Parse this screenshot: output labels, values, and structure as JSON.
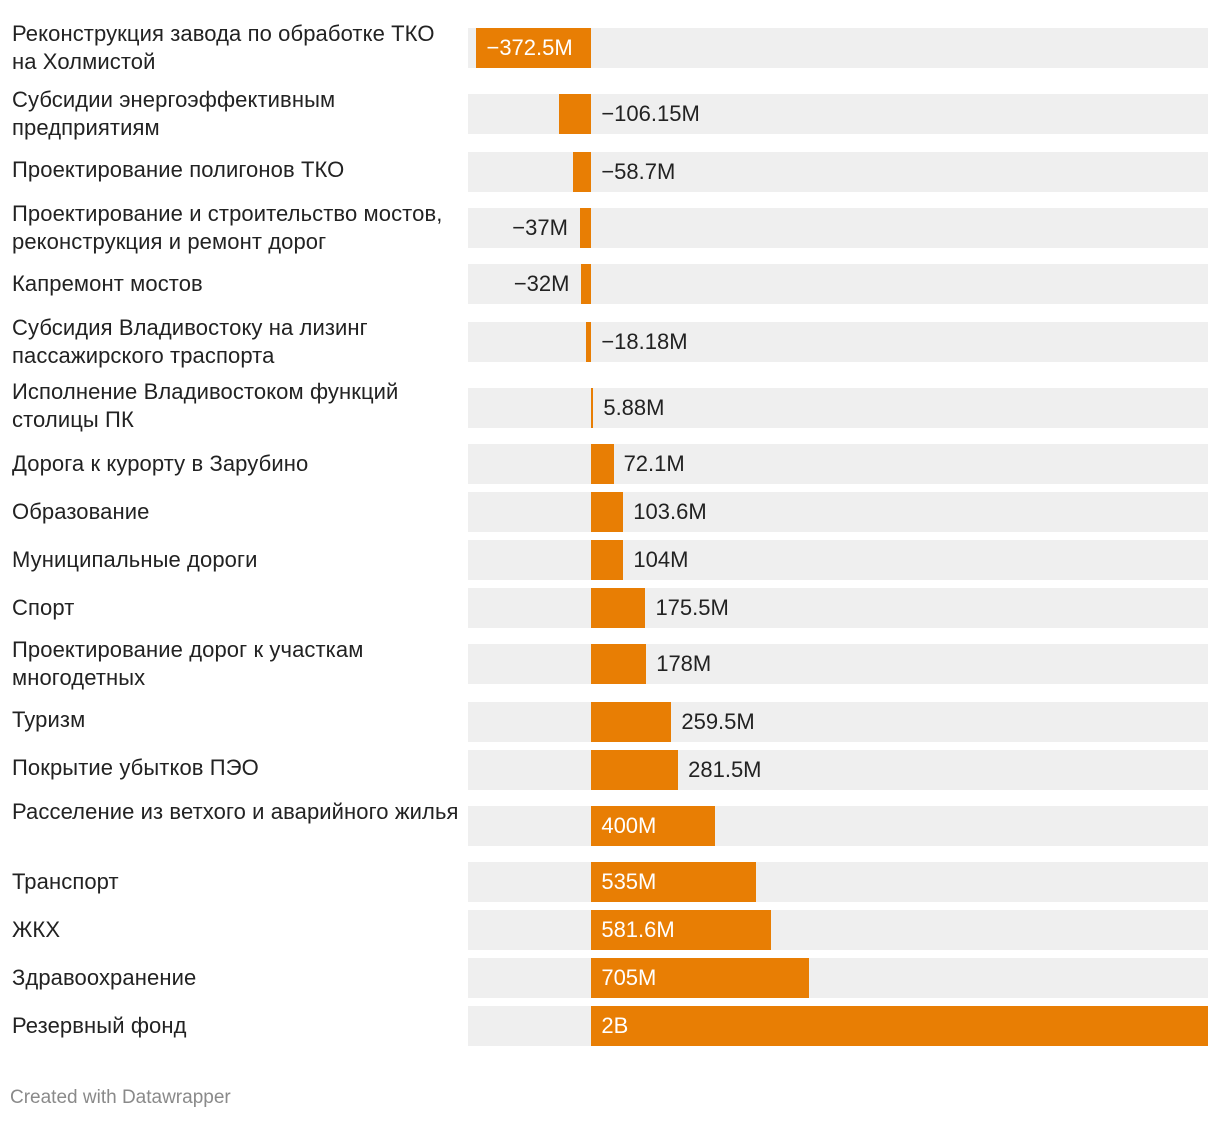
{
  "chart_data": {
    "type": "bar",
    "orientation": "horizontal",
    "bar_color": "#e87e04",
    "track_color": "#efefef",
    "label_dark_color": "#222222",
    "label_light_color": "#ffffff",
    "xlim": [
      -400,
      2000
    ],
    "unit": "M RUB",
    "categories": [
      "Реконструкция завода по обработке ТКО на Холмистой",
      "Субсидии энергоэффективным предприятиям",
      "Проектирование полигонов ТКО",
      "Проектирование и строительство мостов, реконструкция и ремонт дорог",
      "Капремонт мостов",
      "Субсидия Владивостоку на лизинг пассажирского траспорта",
      "Исполнение Владивостоком функций столицы ПК",
      "Дорога к курорту в Зарубино",
      "Образование",
      "Муниципальные дороги",
      "Спорт",
      "Проектирование дорог к участкам многодетных",
      "Туризм",
      "Покрытие убытков ПЭО",
      "Расселение из ветхого и аварийного жилья",
      "Транспорт",
      "ЖКХ",
      "Здравоохранение",
      "Резервный фонд"
    ],
    "values": [
      -372.5,
      -106.15,
      -58.7,
      -37,
      -32,
      -18.18,
      5.88,
      72.1,
      103.6,
      104,
      175.5,
      178,
      259.5,
      281.5,
      400,
      535,
      581.6,
      705,
      2000
    ],
    "value_labels": [
      "−372.5M",
      "−106.15M",
      "−58.7M",
      "−37M",
      "−32M",
      "−18.18M",
      "5.88M",
      "72.1M",
      "103.6M",
      "104M",
      "175.5M",
      "178M",
      "259.5M",
      "281.5M",
      "400M",
      "535M",
      "581.6M",
      "705M",
      "2B"
    ]
  },
  "footer": {
    "credit": "Created with Datawrapper"
  }
}
